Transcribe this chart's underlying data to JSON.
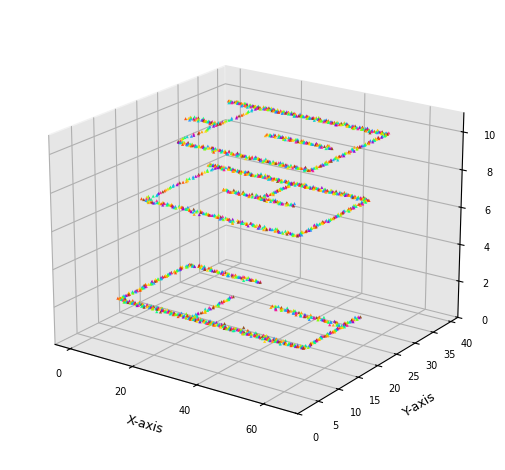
{
  "xlabel": "X-axis",
  "ylabel": "Y-axis",
  "xlim": [
    -5,
    70
  ],
  "ylim": [
    0,
    42
  ],
  "zlim": [
    0,
    11
  ],
  "xticks": [
    0,
    20,
    40,
    60
  ],
  "yticks": [
    0,
    5,
    10,
    15,
    20,
    25,
    30,
    35,
    40
  ],
  "zticks": [
    0,
    2,
    4,
    6,
    8,
    10
  ],
  "floor_levels": [
    2.0,
    7.0,
    10.0
  ],
  "colors": [
    "#FF4500",
    "#FFA500",
    "#FFD700",
    "#7FFF00",
    "#00FF7F",
    "#00CED1",
    "#1E90FF",
    "#9400D3",
    "#FF1493",
    "#8B4513"
  ],
  "marker_size": 5,
  "noise": 0.35,
  "seed": 42,
  "pane_color": "#e6e6e6",
  "elev": 20,
  "azim": -55
}
